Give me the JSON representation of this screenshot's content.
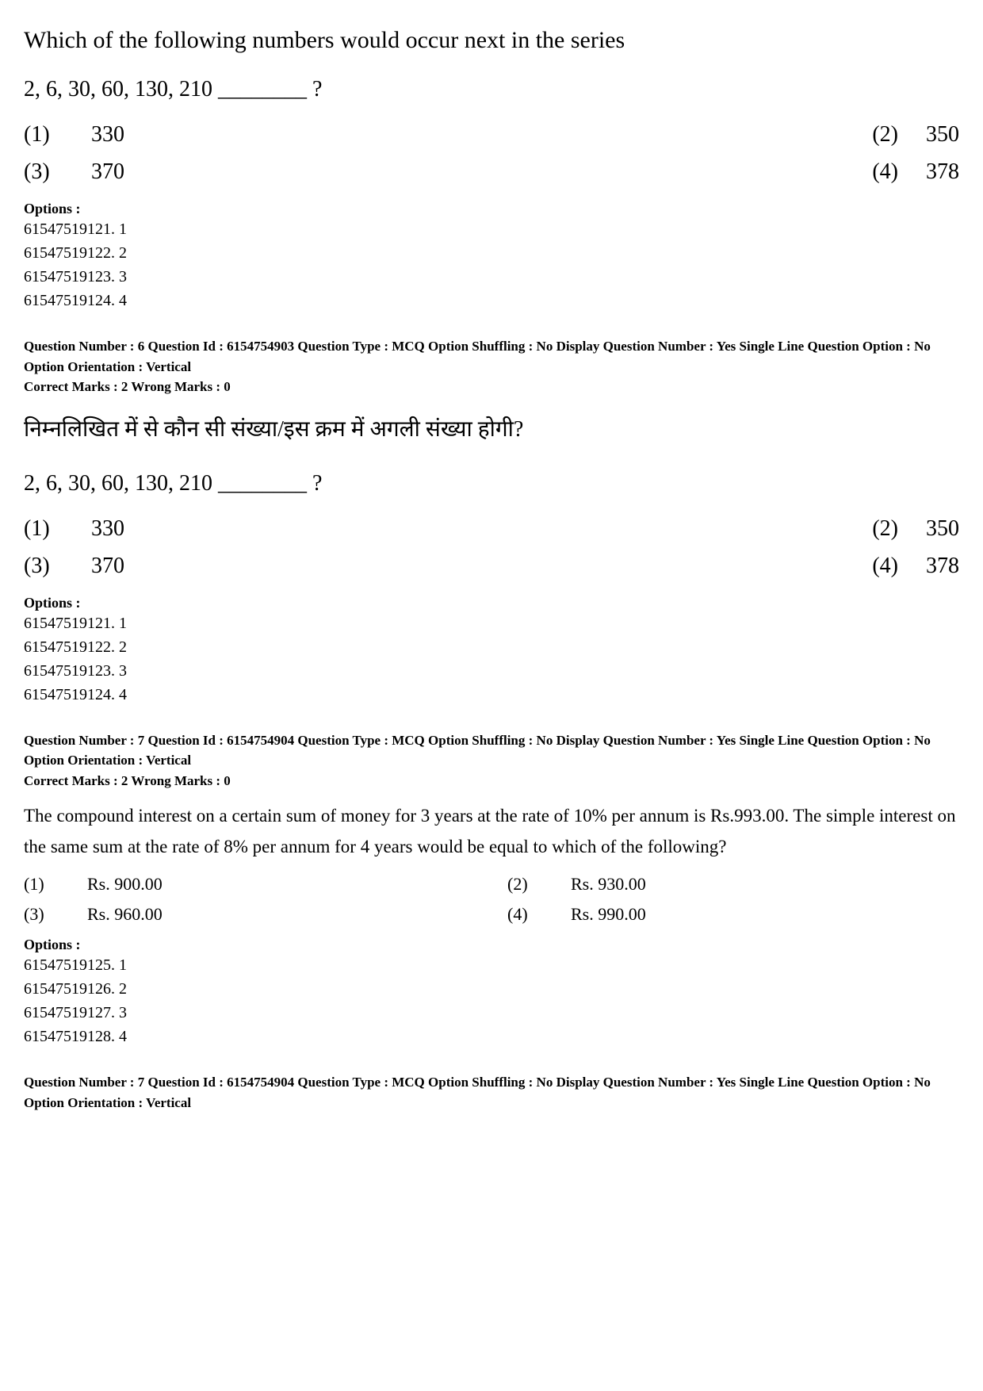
{
  "q5": {
    "stem": "Which of the following numbers would occur next in the series",
    "series": "2, 6, 30, 60, 130, 210 ________ ?",
    "answers": [
      {
        "n": "(1)",
        "v": "330"
      },
      {
        "n": "(2)",
        "v": "350"
      },
      {
        "n": "(3)",
        "v": "370"
      },
      {
        "n": "(4)",
        "v": "378"
      }
    ],
    "options_label": "Options :",
    "options": [
      "61547519121. 1",
      "61547519122. 2",
      "61547519123. 3",
      "61547519124. 4"
    ]
  },
  "q6": {
    "meta1": "Question Number : 6  Question Id : 6154754903  Question Type : MCQ  Option Shuffling : No  Display Question Number : Yes  Single Line Question Option : No  Option Orientation : Vertical",
    "meta2": "Correct Marks : 2  Wrong Marks : 0",
    "stem_hi": "निम्नलिखित में से कौन सी संख्या/इस क्रम में अगली संख्या होगी?",
    "series": "2, 6, 30, 60, 130, 210 ________ ?",
    "answers": [
      {
        "n": "(1)",
        "v": "330"
      },
      {
        "n": "(2)",
        "v": "350"
      },
      {
        "n": "(3)",
        "v": "370"
      },
      {
        "n": "(4)",
        "v": "378"
      }
    ],
    "options_label": "Options :",
    "options": [
      "61547519121. 1",
      "61547519122. 2",
      "61547519123. 3",
      "61547519124. 4"
    ]
  },
  "q7": {
    "meta1": "Question Number : 7  Question Id : 6154754904  Question Type : MCQ  Option Shuffling : No  Display Question Number : Yes  Single Line Question Option : No  Option Orientation : Vertical",
    "meta2": "Correct Marks : 2  Wrong Marks : 0",
    "stem": "The compound interest on a certain sum of money for 3 years at the rate of 10% per annum is Rs.993.00. The simple interest on the same sum at the rate of 8% per annum for 4 years would be equal to which of the following?",
    "answers": [
      {
        "n": "(1)",
        "v": "Rs. 900.00"
      },
      {
        "n": "(2)",
        "v": "Rs. 930.00"
      },
      {
        "n": "(3)",
        "v": "Rs. 960.00"
      },
      {
        "n": "(4)",
        "v": "Rs. 990.00"
      }
    ],
    "options_label": "Options :",
    "options": [
      "61547519125. 1",
      "61547519126. 2",
      "61547519127. 3",
      "61547519128. 4"
    ]
  },
  "q7b": {
    "meta1": "Question Number : 7  Question Id : 6154754904  Question Type : MCQ  Option Shuffling : No  Display Question Number : Yes  Single Line Question Option : No  Option Orientation : Vertical"
  }
}
